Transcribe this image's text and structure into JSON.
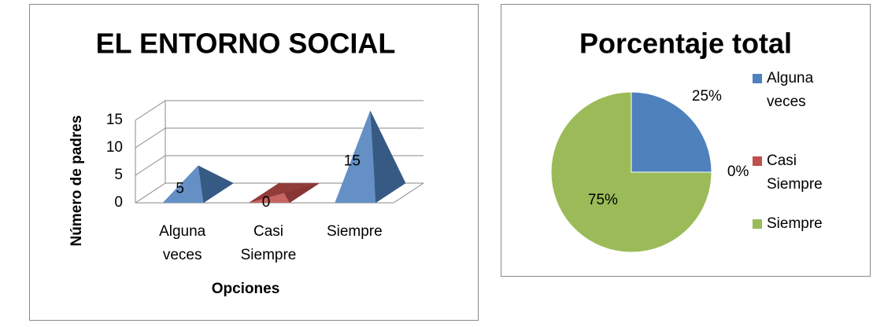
{
  "chart_data": [
    {
      "type": "bar3d",
      "title": "EL ENTORNO SOCIAL",
      "y_label": "Número de padres",
      "x_label": "Opciones",
      "categories": [
        "Alguna veces",
        "Casi Siempre",
        "Siempre"
      ],
      "values": [
        5,
        0,
        15
      ],
      "colors": [
        "#4f81bd",
        "#c0504d",
        "#4f81bd"
      ],
      "ylim": [
        0,
        15
      ],
      "yticks": [
        0,
        5,
        10,
        15
      ],
      "grid": true
    },
    {
      "type": "pie",
      "title": "Porcentaje total",
      "categories": [
        "Alguna veces",
        "Casi Siempre",
        "Siempre"
      ],
      "values": [
        25,
        0,
        75
      ],
      "value_labels": [
        "25%",
        "0%",
        "75%"
      ],
      "colors": [
        "#4f81bd",
        "#c0504d",
        "#9bbb59"
      ],
      "legend": "right"
    }
  ]
}
